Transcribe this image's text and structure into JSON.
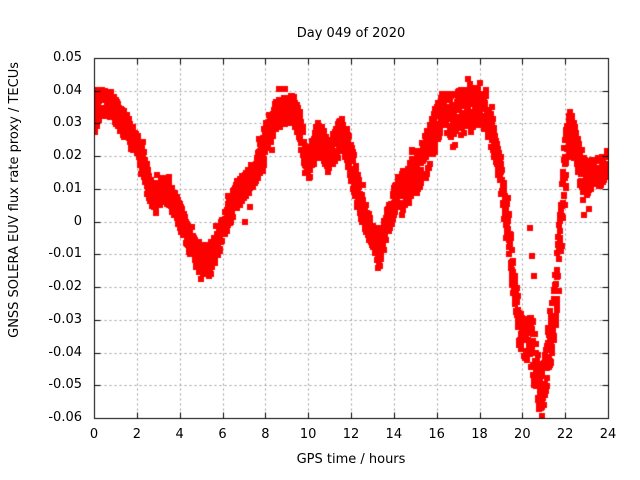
{
  "chart_data": {
    "type": "scatter",
    "title": "Day 049 of 2020",
    "xlabel": "GPS time / hours",
    "ylabel": "GNSS SOLERA EUV flux rate proxy / TECUs",
    "xlim": [
      0,
      24
    ],
    "ylim": [
      -0.06,
      0.05
    ],
    "xticks": [
      0,
      2,
      4,
      6,
      8,
      10,
      12,
      14,
      16,
      18,
      20,
      22,
      24
    ],
    "xtick_labels": [
      "0",
      "2",
      "4",
      "6",
      "8",
      "10",
      "12",
      "14",
      "16",
      "18",
      "20",
      "22",
      "24"
    ],
    "yticks": [
      0.05,
      0.04,
      0.03,
      0.02,
      0.01,
      0,
      -0.01,
      -0.02,
      -0.03,
      -0.04,
      -0.05,
      -0.06
    ],
    "ytick_labels": [
      "0.05",
      "0.04",
      "0.03",
      "0.02",
      "0.01",
      "0",
      "-0.01",
      "-0.02",
      "-0.03",
      "-0.04",
      "-0.05",
      "-0.06"
    ],
    "grid": "dotted-major-both",
    "legend": "none",
    "marker": "filled-square",
    "marker_size_px": 6,
    "colors": {
      "points": "#ff0000",
      "grid": "#a0a0a0",
      "frame": "#000000",
      "text": "#000000",
      "background": "#ffffff"
    },
    "series": [
      {
        "name": "EUV flux rate proxy",
        "x": [
          0.0,
          0.3,
          0.6,
          1.0,
          1.5,
          2.0,
          2.4,
          2.75,
          3.1,
          3.35,
          3.7,
          4.0,
          4.3,
          4.6,
          5.0,
          5.4,
          5.8,
          6.2,
          6.6,
          6.9,
          7.2,
          7.6,
          8.0,
          8.4,
          8.7,
          9.0,
          9.25,
          9.6,
          10.0,
          10.3,
          10.5,
          10.8,
          11.0,
          11.3,
          11.6,
          11.9,
          12.2,
          12.6,
          13.0,
          13.25,
          13.6,
          13.9,
          14.2,
          14.6,
          15.0,
          15.5,
          16.0,
          16.3,
          16.7,
          17.0,
          17.5,
          18.0,
          18.3,
          18.6,
          18.9,
          19.1,
          19.35,
          19.6,
          19.85,
          20.1,
          20.35,
          20.55,
          20.8,
          21.0,
          21.2,
          21.45,
          21.7,
          21.95,
          22.2,
          22.5,
          22.8,
          23.1,
          23.5,
          23.75,
          24.0
        ],
        "y": [
          0.033,
          0.036,
          0.037,
          0.034,
          0.029,
          0.023,
          0.016,
          0.007,
          0.009,
          0.01,
          0.006,
          0.002,
          -0.003,
          -0.008,
          -0.012,
          -0.012,
          -0.006,
          0.001,
          0.007,
          0.01,
          0.012,
          0.016,
          0.025,
          0.031,
          0.034,
          0.034,
          0.035,
          0.029,
          0.016,
          0.023,
          0.026,
          0.022,
          0.02,
          0.024,
          0.027,
          0.022,
          0.012,
          0.003,
          -0.004,
          -0.008,
          -0.003,
          0.004,
          0.009,
          0.011,
          0.014,
          0.02,
          0.03,
          0.034,
          0.032,
          0.034,
          0.035,
          0.035,
          0.033,
          0.027,
          0.018,
          0.01,
          -0.002,
          -0.018,
          -0.032,
          -0.036,
          -0.036,
          -0.04,
          -0.051,
          -0.049,
          -0.042,
          -0.031,
          -0.012,
          0.015,
          0.029,
          0.022,
          0.014,
          0.013,
          0.016,
          0.015,
          0.018
        ],
        "band_halfwidth": [
          0.006,
          0.005,
          0.004,
          0.004,
          0.004,
          0.004,
          0.004,
          0.004,
          0.004,
          0.004,
          0.004,
          0.004,
          0.004,
          0.004,
          0.005,
          0.005,
          0.004,
          0.004,
          0.004,
          0.004,
          0.004,
          0.004,
          0.005,
          0.005,
          0.005,
          0.004,
          0.005,
          0.005,
          0.004,
          0.005,
          0.005,
          0.005,
          0.004,
          0.005,
          0.005,
          0.006,
          0.006,
          0.005,
          0.004,
          0.005,
          0.004,
          0.005,
          0.005,
          0.006,
          0.007,
          0.007,
          0.006,
          0.006,
          0.007,
          0.006,
          0.006,
          0.006,
          0.006,
          0.005,
          0.005,
          0.005,
          0.006,
          0.007,
          0.006,
          0.006,
          0.008,
          0.01,
          0.008,
          0.007,
          0.007,
          0.008,
          0.012,
          0.01,
          0.006,
          0.006,
          0.006,
          0.005,
          0.005,
          0.005,
          0.005
        ]
      }
    ],
    "outliers": [
      [
        0.05,
        0.0275
      ],
      [
        3.5,
        0.0125
      ],
      [
        5.0,
        -0.0175
      ],
      [
        5.15,
        -0.016
      ],
      [
        7.05,
        0.0
      ],
      [
        7.3,
        0.0045
      ],
      [
        13.3,
        -0.013
      ],
      [
        16.85,
        0.0235
      ],
      [
        20.35,
        -0.002
      ],
      [
        20.45,
        -0.0105
      ],
      [
        20.55,
        -0.0165
      ],
      [
        20.85,
        -0.057
      ],
      [
        20.9,
        -0.0595
      ],
      [
        22.9,
        0.002
      ],
      [
        23.1,
        0.004
      ]
    ]
  }
}
